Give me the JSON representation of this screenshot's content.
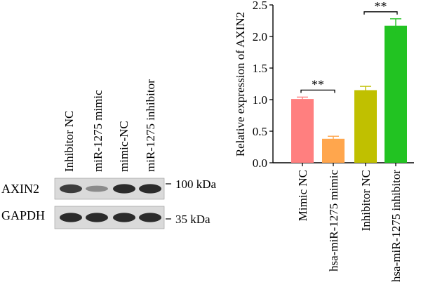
{
  "blot": {
    "lanes": [
      "Inhibitor NC",
      "miR-1275 mimic",
      "mimic-NC",
      "miR-1275 inhibitor"
    ],
    "rows": [
      {
        "name": "AXIN2",
        "marker": "100 kDa",
        "intensity": [
          0.8,
          0.35,
          0.9,
          0.9
        ]
      },
      {
        "name": "GAPDH",
        "marker": "35 kDa",
        "intensity": [
          0.9,
          0.9,
          0.9,
          0.9
        ]
      }
    ]
  },
  "chart_data": {
    "type": "bar",
    "title": "",
    "xlabel": "",
    "ylabel": "Relative expression of AXIN2",
    "ylim": [
      0,
      2.5
    ],
    "yticks": [
      "0.0",
      "0.5",
      "1.0",
      "1.5",
      "2.0",
      "2.5"
    ],
    "categories": [
      "Mimic NC",
      "hsa-miR-1275 mimic",
      "Inhibitor NC",
      "hsa-miR-1275 inhibitor"
    ],
    "values": [
      1.01,
      0.38,
      1.15,
      2.17
    ],
    "errors": [
      0.03,
      0.04,
      0.06,
      0.11
    ],
    "colors": [
      "#ff7f7f",
      "#ffa64d",
      "#c0c000",
      "#22c322"
    ],
    "significance": [
      {
        "from": 0,
        "to": 1,
        "label": "**"
      },
      {
        "from": 2,
        "to": 3,
        "label": "**"
      }
    ],
    "grid": false,
    "legend": "none"
  }
}
